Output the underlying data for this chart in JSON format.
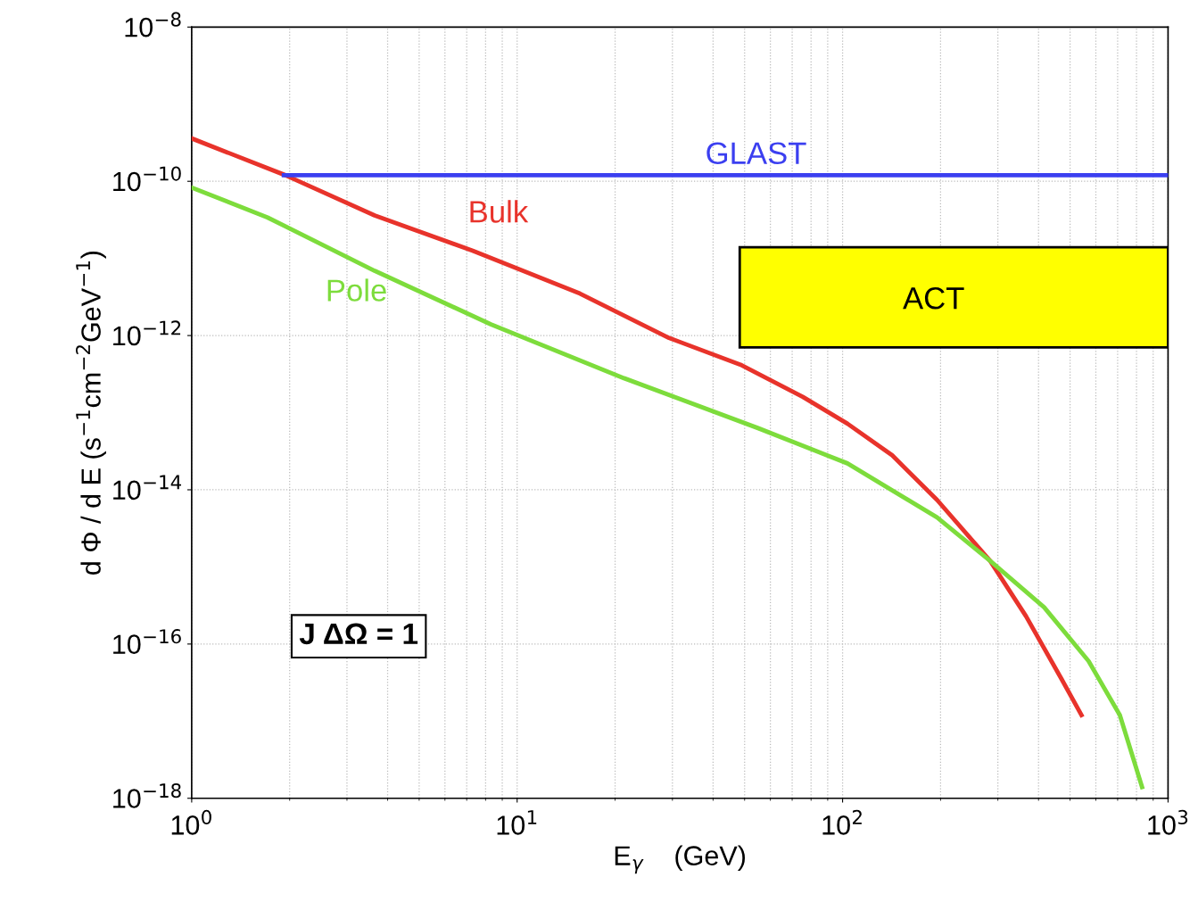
{
  "chart_data": {
    "type": "line",
    "xlabel": "E$_{γ}$    (GeV)",
    "ylabel": "d Φ / d E (s$^{−1}$cm$^{−2}$GeV$^{−1}$)",
    "log": "xy",
    "xlim": [
      1,
      1000
    ],
    "ylim": [
      1e-18,
      1e-08
    ],
    "xticks": [
      {
        "value": 1,
        "label": "10$^{0}$"
      },
      {
        "value": 10,
        "label": "10$^{1}$"
      },
      {
        "value": 100,
        "label": "10$^{2}$"
      },
      {
        "value": 1000,
        "label": "10$^{3}$"
      }
    ],
    "yticks": [
      {
        "value": 1e-18,
        "label": "10$^{−18}$"
      },
      {
        "value": 1e-16,
        "label": "10$^{−16}$"
      },
      {
        "value": 1e-14,
        "label": "10$^{−14}$"
      },
      {
        "value": 1e-12,
        "label": "10$^{−12}$"
      },
      {
        "value": 1e-10,
        "label": "10$^{−10}$"
      },
      {
        "value": 1e-08,
        "label": "10$^{−8}$"
      }
    ],
    "grid": true,
    "marker": "none",
    "line_style": "solid",
    "series": [
      {
        "name": "Bulk",
        "color": "#e8332b",
        "x": [
          1,
          1.94,
          3.65,
          7.3,
          15.6,
          29.3,
          48.5,
          75.5,
          103.5,
          142,
          195,
          284,
          366,
          471,
          542
        ],
        "values": [
          3.6e-10,
          1.2e-10,
          3.6e-11,
          1.26e-11,
          3.5e-12,
          9.3e-13,
          4.2e-13,
          1.6e-13,
          7.2e-14,
          2.8e-14,
          7.4e-15,
          1.2e-15,
          2.3e-16,
          3.5e-17,
          1.2e-17
        ]
      },
      {
        "name": "Pole",
        "color": "#7ddc3c",
        "x": [
          1,
          1.71,
          3.65,
          8.3,
          21.3,
          55,
          103.5,
          195,
          284,
          416,
          570,
          711,
          832
        ],
        "values": [
          8.3e-11,
          3.4e-11,
          6.9e-12,
          1.4e-12,
          2.8e-13,
          6.3e-14,
          2.2e-14,
          4.4e-15,
          1.2e-15,
          3e-16,
          6e-17,
          1.2e-17,
          1.4e-18
        ]
      },
      {
        "name": "GLAST",
        "color": "#3b3ff0",
        "x": [
          1.92,
          1000
        ],
        "values": [
          1.2e-10,
          1.2e-10
        ]
      },
      {
        "name": "ACT",
        "type": "area",
        "color": "#ffff00",
        "x": [
          48.3,
          48.3,
          1000,
          1000,
          48.3
        ],
        "values": [
          7e-13,
          1.4e-11,
          1.4e-11,
          7e-13,
          7e-13
        ]
      }
    ],
    "annotations": [
      "J ΔΩ = 1"
    ]
  }
}
